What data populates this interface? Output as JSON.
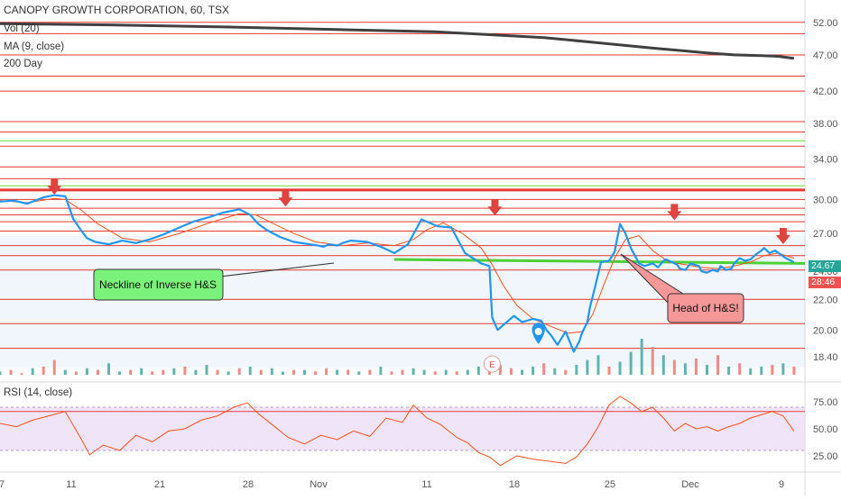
{
  "header": {
    "title": "CANOPY GROWTH CORPORATION, 60, TSX",
    "indicators": [
      "Vol (20)",
      "MA (9, close)",
      "200 Day"
    ],
    "rsi_label": "RSI (14, close)"
  },
  "badges": {
    "last_price": "24.67",
    "countdown": "28:46",
    "price_color": "#26a69a",
    "countdown_color": "#ef5350"
  },
  "colors": {
    "price_line": "#2196f3",
    "ma_line": "#f4511e",
    "sma200_line": "#404040",
    "resistance": "#e53935",
    "support": "#66dd44",
    "rsi_line": "#f4511e",
    "rsi_band": "#e9d8f7",
    "vol_up": "#5fb4b0",
    "vol_down": "#ef8a87",
    "annotation_green": "#7bf27b",
    "annotation_red": "#f79797",
    "marker": "#e0443e",
    "earnings": "#e05c56"
  },
  "annotations": {
    "neckline_label": "Neckline of Inverse H&S",
    "head_label": "Head of H&S!",
    "earnings_label": "E"
  },
  "chart_data": [
    {
      "type": "line",
      "title": "CANOPY GROWTH CORPORATION, 60, TSX",
      "ylim": [
        17.8,
        53.0
      ],
      "y_scale": "log",
      "x_ticks": [
        "7",
        "11",
        "21",
        "28",
        "Nov",
        "11",
        "18",
        "25",
        "Dec",
        "9"
      ],
      "y_ticks": [
        52.0,
        47.0,
        42.0,
        38.0,
        34.0,
        30.0,
        27.0,
        24.0,
        22.0,
        20.0,
        18.4
      ],
      "x_unit": "hourly bar index",
      "series": [
        {
          "name": "",
          "x": [
            0,
            5,
            10,
            16,
            20,
            24,
            25,
            27,
            30,
            32,
            35,
            40,
            45,
            50,
            55,
            60,
            66,
            71,
            77,
            82,
            88,
            92,
            95,
            98,
            103,
            108,
            114,
            117,
            119,
            121,
            124,
            126,
            129,
            135,
            140,
            145,
            150,
            155,
            161,
            166,
            171,
            177,
            180,
            181,
            183,
            187,
            189,
            192,
            196,
            199,
            201,
            203,
            205,
            208,
            211,
            213,
            214,
            216,
            217,
            219,
            221,
            224,
            226,
            228,
            230,
            232,
            235,
            237,
            240,
            242,
            244,
            245,
            247,
            249,
            250,
            252,
            254,
            257,
            258,
            260,
            262,
            264,
            265,
            267,
            269,
            270,
            272,
            274,
            276,
            278,
            280,
            281,
            283,
            285,
            287,
            289,
            291,
            292
          ],
          "values": [
            29.8,
            29.9,
            29.6,
            30.2,
            30.4,
            30.3,
            29.6,
            28.2,
            27.2,
            26.6,
            26.3,
            26.1,
            26.4,
            26.2,
            26.5,
            26.9,
            27.5,
            28.0,
            28.4,
            28.8,
            29.1,
            28.6,
            27.8,
            27.3,
            26.7,
            26.3,
            26.1,
            26.0,
            25.9,
            26.1,
            26.0,
            26.2,
            26.4,
            26.3,
            25.9,
            25.4,
            26.1,
            28.2,
            27.6,
            27.5,
            25.4,
            24.6,
            24.4,
            20.8,
            20.0,
            20.6,
            20.9,
            20.5,
            20.7,
            20.6,
            20.0,
            19.6,
            19.1,
            19.9,
            18.7,
            19.3,
            19.8,
            20.5,
            21.5,
            23.0,
            24.7,
            24.8,
            25.5,
            27.8,
            27.0,
            25.8,
            24.6,
            24.4,
            24.6,
            24.3,
            24.8,
            24.9,
            24.7,
            24.5,
            24.2,
            24.1,
            24.6,
            24.4,
            24.0,
            23.9,
            24.1,
            24.0,
            24.4,
            24.1,
            24.2,
            24.6,
            25.0,
            24.8,
            24.9,
            25.3,
            25.6,
            25.8,
            25.4,
            25.6,
            25.3,
            25.0,
            24.8,
            24.67
          ]
        },
        {
          "name": "MA (9, close)",
          "x": [
            0,
            10,
            20,
            24,
            30,
            36,
            45,
            55,
            66,
            77,
            88,
            94,
            100,
            108,
            116,
            126,
            135,
            145,
            152,
            157,
            163,
            170,
            177,
            181,
            185,
            190,
            196,
            203,
            209,
            214,
            218,
            222,
            226,
            230,
            235,
            240,
            246,
            252,
            258,
            264,
            270,
            276,
            281,
            286,
            292
          ],
          "values": [
            29.9,
            29.7,
            30.1,
            30.0,
            29.0,
            27.8,
            26.6,
            26.3,
            27.0,
            27.9,
            28.7,
            28.6,
            27.9,
            27.0,
            26.3,
            26.0,
            26.2,
            26.0,
            26.5,
            27.3,
            27.9,
            27.0,
            25.8,
            24.5,
            23.0,
            21.6,
            20.7,
            20.2,
            19.8,
            19.9,
            21.0,
            23.0,
            25.0,
            26.5,
            26.8,
            25.6,
            24.7,
            24.5,
            24.3,
            24.2,
            24.4,
            24.7,
            25.2,
            25.4,
            25.0
          ]
        },
        {
          "name": "200 Day",
          "x": [
            0,
            40,
            80,
            120,
            160,
            200,
            220,
            240,
            260,
            270,
            280,
            286,
            292
          ],
          "values": [
            51.8,
            51.6,
            51.3,
            50.9,
            50.5,
            49.6,
            48.8,
            48.0,
            47.3,
            47.0,
            46.9,
            46.8,
            46.5
          ]
        }
      ],
      "horizontal_levels": [
        52.0,
        50.2,
        47.0,
        44.0,
        42.0,
        38.2,
        37.0,
        35.4,
        33.2,
        32.0,
        30.0,
        29.2,
        28.6,
        28.0,
        27.2,
        26.0,
        25.2,
        24.1,
        22.0,
        20.4,
        18.9
      ],
      "support_levels": [
        36.0,
        31.3
      ],
      "strong_resistance": 30.9,
      "neckline": {
        "x": [
          145,
          292
        ],
        "values": [
          24.9,
          24.6
        ]
      },
      "markers": [
        {
          "x": 20,
          "value": 30.2,
          "type": "arrow-down"
        },
        {
          "x": 105,
          "value": 29.1,
          "type": "arrow-down"
        },
        {
          "x": 182,
          "value": 28.3,
          "type": "arrow-down"
        },
        {
          "x": 248,
          "value": 27.9,
          "type": "arrow-down"
        },
        {
          "x": 288,
          "value": 25.9,
          "type": "arrow-down"
        }
      ]
    },
    {
      "type": "bar",
      "title": "Vol (20)",
      "x_unit": "hourly bar index",
      "x": [
        0,
        4,
        8,
        12,
        16,
        20,
        24,
        28,
        32,
        36,
        40,
        44,
        48,
        52,
        56,
        60,
        64,
        68,
        72,
        76,
        80,
        84,
        88,
        92,
        96,
        100,
        104,
        108,
        112,
        116,
        120,
        124,
        128,
        132,
        136,
        140,
        144,
        148,
        152,
        156,
        160,
        164,
        168,
        172,
        176,
        180,
        184,
        188,
        192,
        196,
        200,
        204,
        208,
        212,
        216,
        220,
        224,
        228,
        232,
        236,
        240,
        244,
        248,
        252,
        256,
        260,
        264,
        268,
        272,
        276,
        280,
        284,
        288,
        292
      ],
      "values": [
        2,
        3,
        1,
        4,
        5,
        9,
        3,
        2,
        4,
        3,
        7,
        2,
        3,
        4,
        2,
        3,
        4,
        5,
        3,
        6,
        3,
        2,
        4,
        5,
        3,
        4,
        2,
        3,
        3,
        2,
        4,
        3,
        3,
        2,
        3,
        5,
        2,
        3,
        4,
        3,
        2,
        3,
        2,
        3,
        5,
        8,
        6,
        4,
        3,
        5,
        7,
        4,
        3,
        6,
        9,
        12,
        5,
        8,
        14,
        22,
        17,
        12,
        9,
        7,
        10,
        6,
        12,
        5,
        7,
        4,
        5,
        6,
        7,
        5
      ],
      "colors": [
        "up",
        "down",
        "down",
        "up",
        "down",
        "down",
        "up",
        "down",
        "up",
        "down",
        "up",
        "up",
        "down",
        "up",
        "down",
        "down",
        "up",
        "down",
        "up",
        "up",
        "down",
        "up",
        "down",
        "up",
        "down",
        "up",
        "up",
        "down",
        "up",
        "down",
        "down",
        "up",
        "down",
        "up",
        "down",
        "up",
        "down",
        "down",
        "up",
        "up",
        "down",
        "up",
        "down",
        "up",
        "up",
        "down",
        "down",
        "down",
        "up",
        "up",
        "down",
        "up",
        "down",
        "up",
        "up",
        "up",
        "down",
        "up",
        "up",
        "up",
        "down",
        "up",
        "down",
        "up",
        "down",
        "up",
        "down",
        "up",
        "down",
        "up",
        "up",
        "down",
        "up",
        "down"
      ]
    },
    {
      "type": "line",
      "title": "RSI (14, close)",
      "ylim": [
        15,
        85
      ],
      "y_ticks": [
        75.0,
        50.0,
        25.0
      ],
      "band": [
        30,
        70
      ],
      "level_line": 66,
      "x_unit": "hourly bar index",
      "x": [
        0,
        6,
        12,
        18,
        24,
        30,
        33,
        38,
        44,
        50,
        56,
        62,
        68,
        74,
        80,
        86,
        91,
        95,
        100,
        106,
        112,
        118,
        124,
        130,
        136,
        142,
        148,
        152,
        157,
        162,
        168,
        172,
        176,
        180,
        184,
        190,
        196,
        202,
        208,
        212,
        216,
        220,
        224,
        228,
        232,
        236,
        240,
        244,
        248,
        252,
        256,
        260,
        264,
        268,
        272,
        276,
        280,
        284,
        288,
        292
      ],
      "values": [
        55,
        52,
        58,
        62,
        66,
        40,
        26,
        35,
        30,
        44,
        38,
        48,
        50,
        58,
        62,
        70,
        74,
        64,
        54,
        42,
        36,
        44,
        40,
        48,
        43,
        60,
        56,
        72,
        60,
        54,
        42,
        37,
        28,
        24,
        16,
        25,
        22,
        20,
        18,
        24,
        36,
        52,
        72,
        80,
        74,
        66,
        70,
        60,
        48,
        55,
        50,
        52,
        48,
        52,
        55,
        60,
        63,
        66,
        62,
        48
      ]
    }
  ]
}
